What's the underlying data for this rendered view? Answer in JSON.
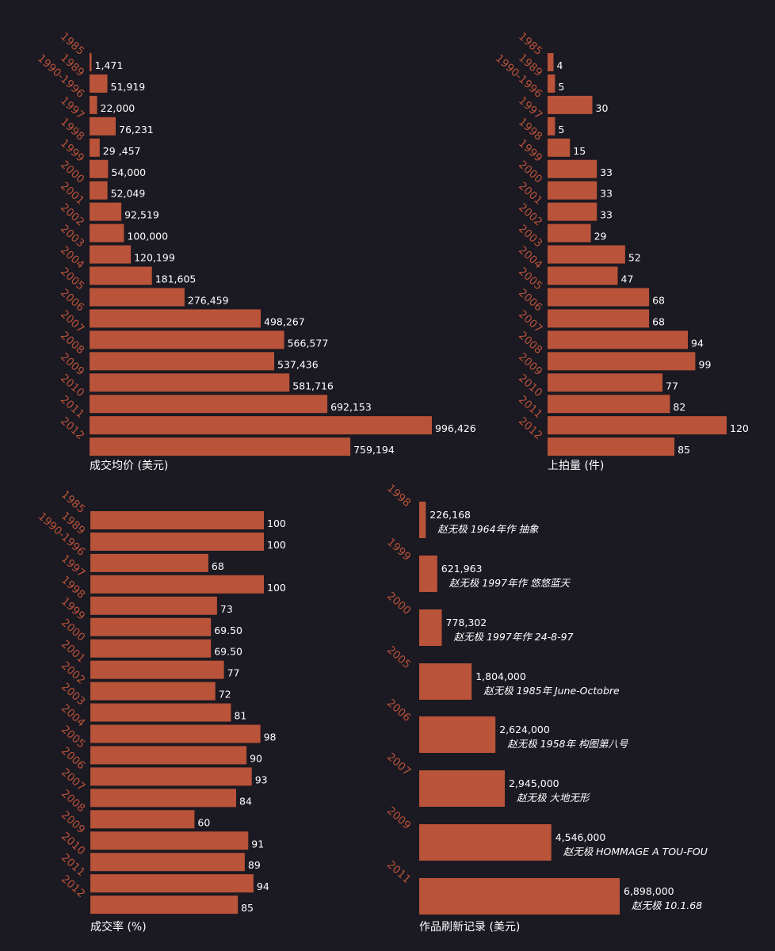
{
  "chart_data": [
    {
      "type": "bar",
      "orientation": "horizontal",
      "title": "成交均价 (美元)",
      "categories": [
        "1985",
        "1989",
        "1990-1996",
        "1997",
        "1998",
        "1999",
        "2000",
        "2001",
        "2002",
        "2003",
        "2004",
        "2005",
        "2006",
        "2007",
        "2008",
        "2009",
        "2010",
        "2011",
        "2012"
      ],
      "values": [
        1471,
        51919,
        22000,
        76231,
        29457,
        54000,
        52049,
        92519,
        100000,
        120199,
        181605,
        276459,
        498267,
        566577,
        537436,
        581716,
        692153,
        996426,
        759194
      ],
      "value_labels": [
        "1,471",
        "51,919",
        "22,000",
        "76,231",
        "29 ,457",
        "54,000",
        "52,049",
        "92,519",
        "100,000",
        "120,199",
        "181,605",
        "276,459",
        "498,267",
        "566,577",
        "537,436",
        "581,716",
        "692,153",
        "996,426",
        "759,194"
      ],
      "color": "#b95339"
    },
    {
      "type": "bar",
      "orientation": "horizontal",
      "title": "上拍量 (件)",
      "categories": [
        "1985",
        "1989",
        "1990-1996",
        "1997",
        "1998",
        "1999",
        "2000",
        "2001",
        "2002",
        "2003",
        "2004",
        "2005",
        "2006",
        "2007",
        "2008",
        "2009",
        "2010",
        "2011",
        "2012"
      ],
      "values": [
        4,
        5,
        30,
        5,
        15,
        33,
        33,
        33,
        29,
        52,
        47,
        68,
        68,
        94,
        99,
        77,
        82,
        120,
        85
      ],
      "value_labels": [
        "4",
        "5",
        "30",
        "5",
        "15",
        "33",
        "33",
        "33",
        "29",
        "52",
        "47",
        "68",
        "68",
        "94",
        "99",
        "77",
        "82",
        "120",
        "85"
      ],
      "color": "#b95339"
    },
    {
      "type": "bar",
      "orientation": "horizontal",
      "title": "成交率 (%)",
      "categories": [
        "1985",
        "1989",
        "1990-1996",
        "1997",
        "1998",
        "1999",
        "2000",
        "2001",
        "2002",
        "2003",
        "2004",
        "2005",
        "2006",
        "2007",
        "2008",
        "2009",
        "2010",
        "2011",
        "2012"
      ],
      "values": [
        100,
        100,
        68,
        100,
        73,
        69.5,
        69.5,
        77,
        72,
        81,
        98,
        90,
        93,
        84,
        60,
        91,
        89,
        94,
        85
      ],
      "value_labels": [
        "100",
        "100",
        "68",
        "100",
        "73",
        "69.50",
        "69.50",
        "77",
        "72",
        "81",
        "98",
        "90",
        "93",
        "84",
        "60",
        "91",
        "89",
        "94",
        "85"
      ],
      "color": "#b95339"
    },
    {
      "type": "bar",
      "orientation": "horizontal",
      "title": "作品刷新记录 (美元)",
      "categories": [
        "1998",
        "1999",
        "2000",
        "2005",
        "2006",
        "2007",
        "2009",
        "2011"
      ],
      "values": [
        226168,
        621963,
        778302,
        1804000,
        2624000,
        2945000,
        4546000,
        6898000
      ],
      "value_labels": [
        "226,168",
        "621,963",
        "778,302",
        "1,804,000",
        "2,624,000",
        "2,945,000",
        "4,546,000",
        "6,898,000"
      ],
      "works": [
        "赵无极 1964年作 抽象",
        "赵无极 1997年作 悠悠蓝天",
        "赵无极 1997年作 24-8-97",
        "赵无极 1985年 June-Octobre",
        "赵无极 1958年 构图第八号",
        "赵无极 大地无形",
        "赵无极 HOMMAGE A TOU-FOU",
        "赵无极 10.1.68"
      ],
      "color": "#b95339"
    }
  ]
}
